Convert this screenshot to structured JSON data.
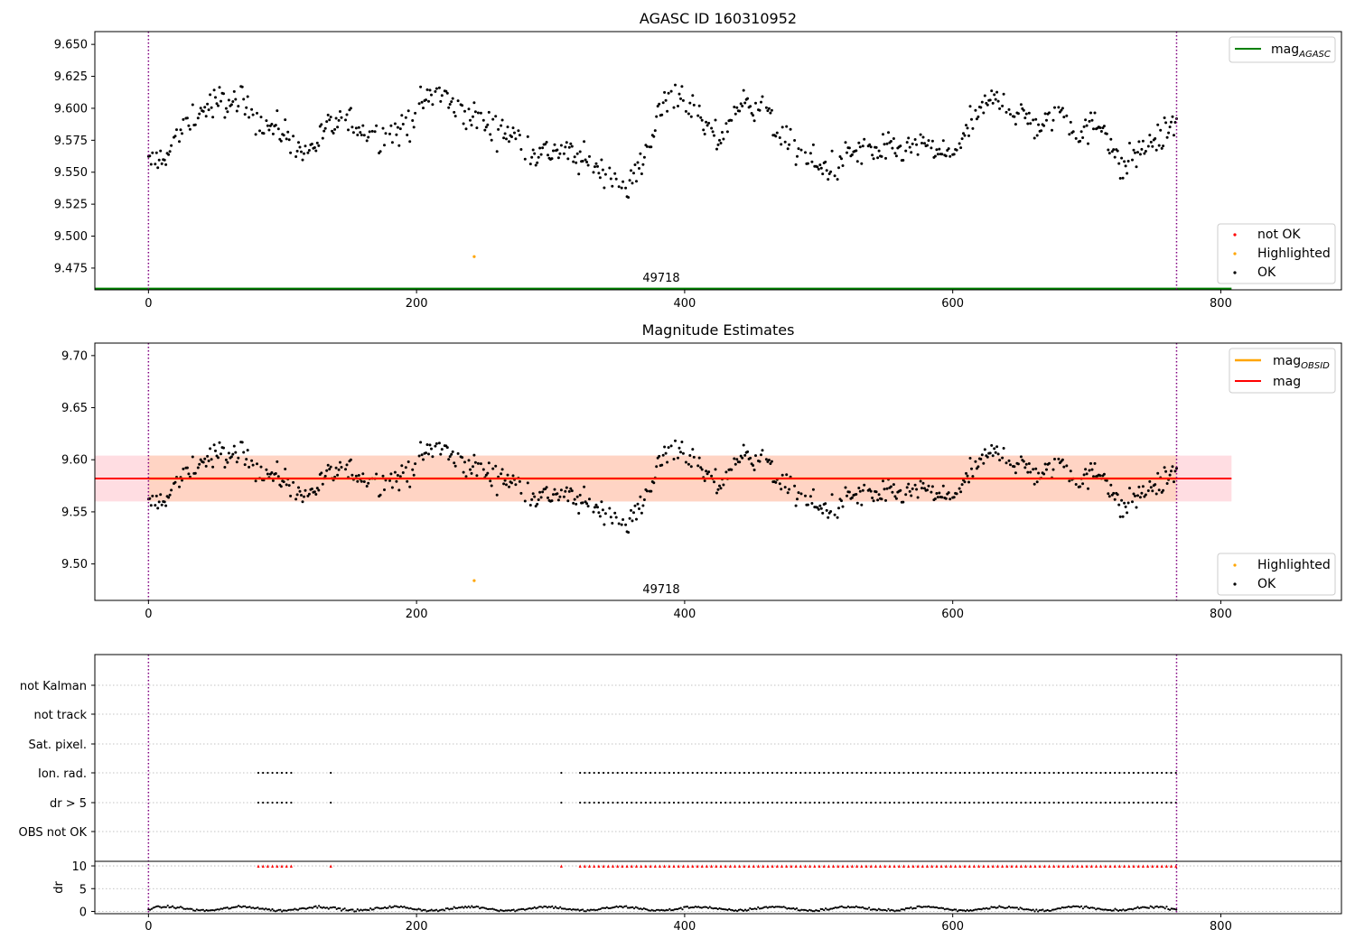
{
  "chart_data": [
    {
      "type": "scatter",
      "title": "AGASC ID 160310952",
      "xlim": [
        -40,
        890
      ],
      "ylim": [
        9.458,
        9.66
      ],
      "x_ticks": [
        0,
        200,
        400,
        600,
        800
      ],
      "y_ticks": [
        9.475,
        9.5,
        9.525,
        9.55,
        9.575,
        9.6,
        9.625,
        9.65
      ],
      "y_tick_labels": [
        "9.475",
        "9.500",
        "9.525",
        "9.550",
        "9.575",
        "9.600",
        "9.625",
        "9.650"
      ],
      "obsid_label": "49718",
      "obsid_boundaries": [
        0,
        767
      ],
      "mag_agasc": 9.459,
      "mag_agasc_x_range": [
        -40,
        808
      ],
      "highlighted_points": [
        {
          "x": 243,
          "y": 9.484
        }
      ],
      "legend_upper": [
        "magAGASC"
      ],
      "legend_upper_main": "mag",
      "legend_upper_sub": "AGASC",
      "legend_lower": [
        "not OK",
        "Highlighted",
        "OK"
      ],
      "colors": {
        "ok": "#000000",
        "not_ok": "#ff0000",
        "highlighted": "#ffa500",
        "agasc": "#008000",
        "boundary": "#800080"
      }
    },
    {
      "type": "scatter",
      "title": "Magnitude Estimates",
      "xlim": [
        -40,
        890
      ],
      "ylim": [
        9.465,
        9.712
      ],
      "x_ticks": [
        0,
        200,
        400,
        600,
        800
      ],
      "y_ticks": [
        9.5,
        9.55,
        9.6,
        9.65,
        9.7
      ],
      "y_tick_labels": [
        "9.50",
        "9.55",
        "9.60",
        "9.65",
        "9.70"
      ],
      "obsid_label": "49718",
      "mag": 9.582,
      "mag_band": [
        9.56,
        9.604
      ],
      "mag_obsid": 9.582,
      "highlighted_points": [
        {
          "x": 243,
          "y": 9.484
        }
      ],
      "legend_upper": [
        "magOBSID",
        "mag"
      ],
      "legend_upper_main": "mag",
      "legend_upper_sub": "OBSID",
      "legend_lower": [
        "Highlighted",
        "OK"
      ],
      "colors": {
        "ok": "#000000",
        "mag": "#ff0000",
        "mag_obsid": "#ffa500",
        "band_outer": "#ffdde2",
        "band_inner": "#ffd4c4",
        "boundary": "#800080"
      }
    },
    {
      "type": "scatter",
      "title": "",
      "xlim": [
        -40,
        890
      ],
      "flag_rows": [
        "not Kalman",
        "not track",
        "Sat. pixel.",
        "Ion. rad.",
        "dr > 5",
        "OBS not OK"
      ],
      "flag_segments": [
        {
          "row": "Ion. rad.",
          "from": 82,
          "to": 107
        },
        {
          "row": "Ion. rad.",
          "from": 136,
          "to": 136
        },
        {
          "row": "Ion. rad.",
          "from": 308,
          "to": 311
        },
        {
          "row": "Ion. rad.",
          "from": 322,
          "to": 767
        },
        {
          "row": "dr > 5",
          "from": 82,
          "to": 107
        },
        {
          "row": "dr > 5",
          "from": 136,
          "to": 136
        },
        {
          "row": "dr > 5",
          "from": 308,
          "to": 311
        },
        {
          "row": "dr > 5",
          "from": 322,
          "to": 767
        }
      ],
      "dr_ylim": [
        -0.5,
        11
      ],
      "dr_ticks": [
        0,
        5,
        10
      ],
      "dr_tick_labels": [
        "0",
        "5",
        "10"
      ],
      "dr_ylabel": "dr",
      "dr_clipped_value": 10,
      "x_ticks": [
        0,
        200,
        400,
        600,
        800
      ]
    }
  ]
}
